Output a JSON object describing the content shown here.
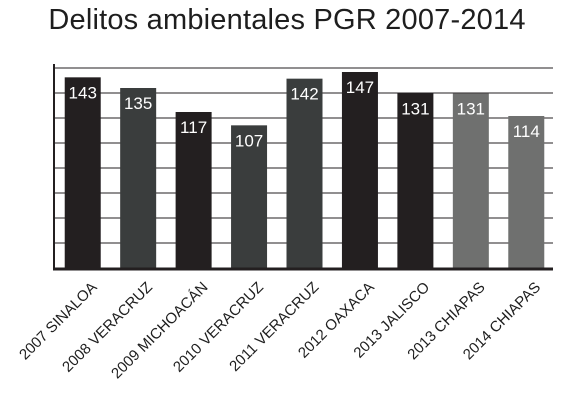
{
  "chart_data": {
    "type": "bar",
    "title": "Delitos ambientales PGR 2007-2014",
    "xlabel": "",
    "ylabel": "",
    "ylim": [
      0,
      150
    ],
    "grid": true,
    "categories": [
      "2007 SINALOA",
      "2008 VERACRUZ",
      "2009 MICHOACÁN",
      "2010 VERACRUZ",
      "2011 VERACRUZ",
      "2012 OAXACA",
      "2013 JALISCO",
      "2013 CHIAPAS",
      "2014 CHIAPAS"
    ],
    "values": [
      143,
      135,
      117,
      107,
      142,
      147,
      131,
      131,
      114
    ],
    "value_labels": [
      "143",
      "135",
      "117",
      "107",
      "142",
      "147",
      "131",
      "131",
      "114"
    ],
    "colors": [
      "#231f20",
      "#3a3d3d",
      "#231f20",
      "#3a3d3d",
      "#3a3d3d",
      "#231f20",
      "#231f20",
      "#6f706f",
      "#6f706f"
    ],
    "axis_color": "#231f20",
    "grid_color": "#231f20"
  }
}
